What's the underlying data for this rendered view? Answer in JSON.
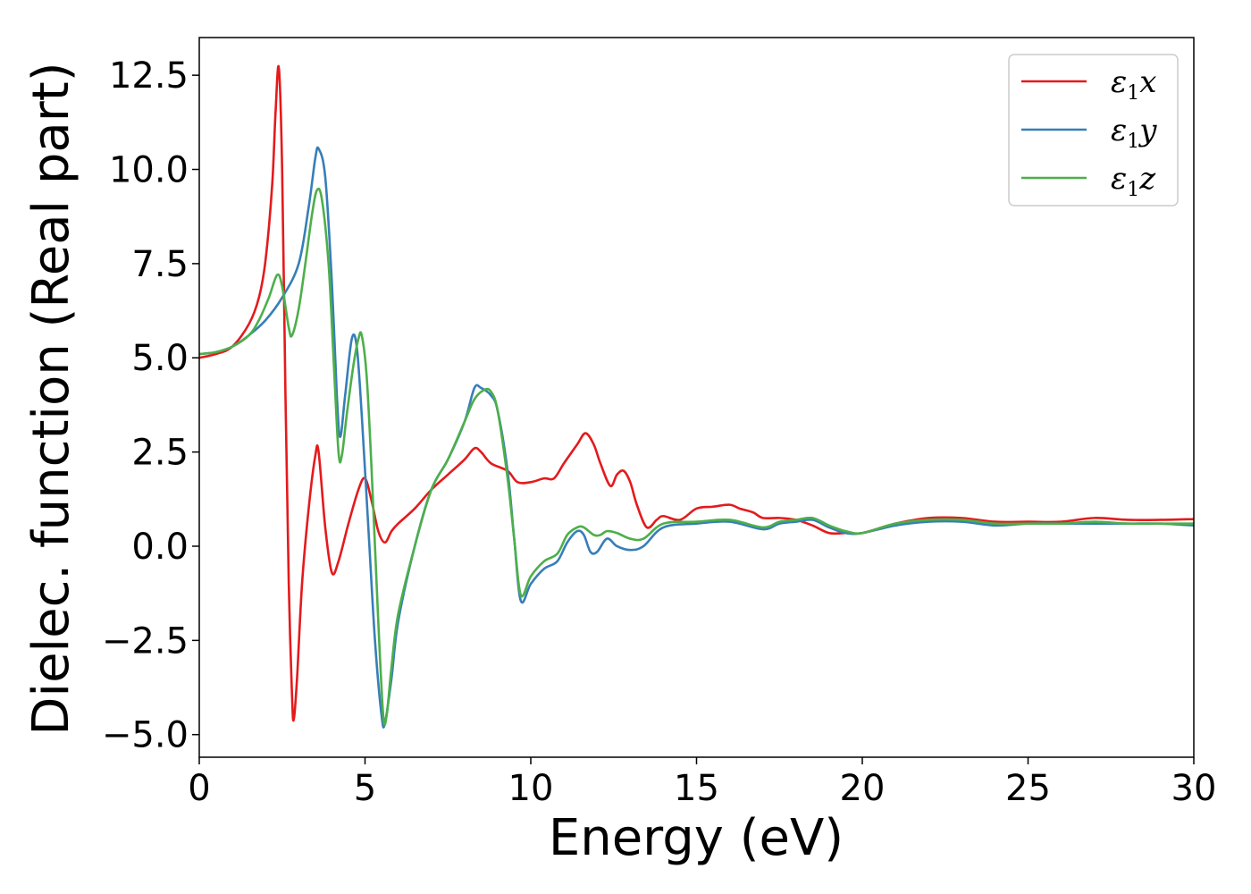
{
  "chart_data": {
    "type": "line",
    "title": "",
    "xlabel": "Energy (eV)",
    "ylabel": "Dielec. function (Real part)",
    "xlim": [
      0,
      30
    ],
    "ylim": [
      -5.6,
      13.5
    ],
    "xticks": [
      0,
      5,
      10,
      15,
      20,
      25,
      30
    ],
    "xtick_labels": [
      "0",
      "5",
      "10",
      "15",
      "20",
      "25",
      "30"
    ],
    "yticks": [
      -5.0,
      -2.5,
      0.0,
      2.5,
      5.0,
      7.5,
      10.0,
      12.5
    ],
    "ytick_labels": [
      "−5.0",
      "−2.5",
      "0.0",
      "2.5",
      "5.0",
      "7.5",
      "10.0",
      "12.5"
    ],
    "grid": false,
    "legend_position": "top-right",
    "series": [
      {
        "name": "ε1x",
        "legend": {
          "sym": "ε",
          "sub": "1",
          "suffix": "x"
        },
        "color": "#e41a1c",
        "points": [
          [
            0,
            5.0
          ],
          [
            0.5,
            5.1
          ],
          [
            1.0,
            5.3
          ],
          [
            1.5,
            5.9
          ],
          [
            1.8,
            6.6
          ],
          [
            2.0,
            7.6
          ],
          [
            2.2,
            9.6
          ],
          [
            2.3,
            11.5
          ],
          [
            2.4,
            12.7
          ],
          [
            2.5,
            10.0
          ],
          [
            2.6,
            4.0
          ],
          [
            2.7,
            -1.0
          ],
          [
            2.8,
            -4.0
          ],
          [
            2.85,
            -4.6
          ],
          [
            2.95,
            -3.5
          ],
          [
            3.1,
            -1.0
          ],
          [
            3.3,
            1.0
          ],
          [
            3.5,
            2.4
          ],
          [
            3.6,
            2.5
          ],
          [
            3.8,
            0.5
          ],
          [
            4.0,
            -0.7
          ],
          [
            4.2,
            -0.4
          ],
          [
            4.5,
            0.6
          ],
          [
            4.8,
            1.5
          ],
          [
            5.0,
            1.8
          ],
          [
            5.2,
            1.2
          ],
          [
            5.4,
            0.4
          ],
          [
            5.6,
            0.1
          ],
          [
            5.8,
            0.4
          ],
          [
            6.0,
            0.6
          ],
          [
            6.5,
            1.0
          ],
          [
            7.0,
            1.5
          ],
          [
            7.5,
            1.9
          ],
          [
            8.0,
            2.3
          ],
          [
            8.3,
            2.6
          ],
          [
            8.5,
            2.5
          ],
          [
            8.8,
            2.2
          ],
          [
            9.3,
            2.0
          ],
          [
            9.6,
            1.7
          ],
          [
            10.0,
            1.7
          ],
          [
            10.4,
            1.8
          ],
          [
            10.7,
            1.8
          ],
          [
            11.0,
            2.2
          ],
          [
            11.4,
            2.7
          ],
          [
            11.65,
            3.0
          ],
          [
            11.9,
            2.7
          ],
          [
            12.1,
            2.2
          ],
          [
            12.4,
            1.6
          ],
          [
            12.6,
            1.9
          ],
          [
            12.8,
            2.0
          ],
          [
            13.0,
            1.7
          ],
          [
            13.2,
            1.1
          ],
          [
            13.5,
            0.5
          ],
          [
            13.8,
            0.7
          ],
          [
            14.0,
            0.8
          ],
          [
            14.5,
            0.7
          ],
          [
            15.0,
            1.0
          ],
          [
            15.5,
            1.05
          ],
          [
            16.0,
            1.1
          ],
          [
            16.3,
            1.0
          ],
          [
            16.7,
            0.9
          ],
          [
            17.0,
            0.75
          ],
          [
            17.5,
            0.75
          ],
          [
            18.0,
            0.7
          ],
          [
            18.5,
            0.55
          ],
          [
            19.0,
            0.35
          ],
          [
            19.5,
            0.35
          ],
          [
            20.0,
            0.35
          ],
          [
            21.0,
            0.6
          ],
          [
            22.0,
            0.75
          ],
          [
            23.0,
            0.75
          ],
          [
            24.0,
            0.65
          ],
          [
            25.0,
            0.65
          ],
          [
            26.0,
            0.65
          ],
          [
            27.0,
            0.75
          ],
          [
            28.0,
            0.7
          ],
          [
            29.0,
            0.7
          ],
          [
            30.0,
            0.72
          ]
        ]
      },
      {
        "name": "ε1y",
        "legend": {
          "sym": "ε",
          "sub": "1",
          "suffix": "y"
        },
        "color": "#377eb8",
        "points": [
          [
            0,
            5.1
          ],
          [
            0.5,
            5.15
          ],
          [
            1.0,
            5.3
          ],
          [
            1.5,
            5.6
          ],
          [
            2.0,
            6.0
          ],
          [
            2.5,
            6.6
          ],
          [
            3.0,
            7.5
          ],
          [
            3.3,
            9.0
          ],
          [
            3.5,
            10.3
          ],
          [
            3.6,
            10.55
          ],
          [
            3.8,
            9.8
          ],
          [
            4.0,
            7.0
          ],
          [
            4.15,
            4.0
          ],
          [
            4.25,
            2.9
          ],
          [
            4.4,
            4.0
          ],
          [
            4.6,
            5.5
          ],
          [
            4.75,
            5.3
          ],
          [
            4.9,
            3.5
          ],
          [
            5.1,
            0.5
          ],
          [
            5.3,
            -2.5
          ],
          [
            5.5,
            -4.5
          ],
          [
            5.6,
            -4.7
          ],
          [
            5.8,
            -3.5
          ],
          [
            6.0,
            -2.0
          ],
          [
            6.5,
            0.0
          ],
          [
            7.0,
            1.5
          ],
          [
            7.5,
            2.3
          ],
          [
            8.0,
            3.3
          ],
          [
            8.3,
            4.2
          ],
          [
            8.5,
            4.2
          ],
          [
            8.8,
            4.0
          ],
          [
            9.0,
            3.6
          ],
          [
            9.3,
            2.0
          ],
          [
            9.5,
            0.2
          ],
          [
            9.7,
            -1.45
          ],
          [
            10.0,
            -1.0
          ],
          [
            10.4,
            -0.6
          ],
          [
            10.8,
            -0.4
          ],
          [
            11.1,
            0.1
          ],
          [
            11.4,
            0.4
          ],
          [
            11.6,
            0.3
          ],
          [
            11.8,
            -0.15
          ],
          [
            12.0,
            -0.15
          ],
          [
            12.3,
            0.2
          ],
          [
            12.6,
            0.0
          ],
          [
            13.0,
            -0.1
          ],
          [
            13.4,
            0.0
          ],
          [
            14.0,
            0.5
          ],
          [
            15.0,
            0.6
          ],
          [
            16.0,
            0.65
          ],
          [
            17.0,
            0.45
          ],
          [
            17.5,
            0.6
          ],
          [
            18.0,
            0.65
          ],
          [
            18.5,
            0.7
          ],
          [
            19.0,
            0.5
          ],
          [
            19.5,
            0.35
          ],
          [
            20.0,
            0.35
          ],
          [
            21.0,
            0.55
          ],
          [
            22.0,
            0.65
          ],
          [
            23.0,
            0.65
          ],
          [
            24.0,
            0.55
          ],
          [
            25.0,
            0.6
          ],
          [
            26.0,
            0.6
          ],
          [
            27.0,
            0.6
          ],
          [
            28.0,
            0.6
          ],
          [
            29.0,
            0.6
          ],
          [
            30.0,
            0.55
          ]
        ]
      },
      {
        "name": "ε1z",
        "legend": {
          "sym": "ε",
          "sub": "1",
          "suffix": "z"
        },
        "color": "#4daf4a",
        "points": [
          [
            0,
            5.1
          ],
          [
            0.5,
            5.15
          ],
          [
            1.0,
            5.3
          ],
          [
            1.5,
            5.6
          ],
          [
            1.8,
            6.0
          ],
          [
            2.1,
            6.6
          ],
          [
            2.35,
            7.2
          ],
          [
            2.5,
            6.9
          ],
          [
            2.7,
            5.8
          ],
          [
            2.8,
            5.6
          ],
          [
            3.0,
            6.3
          ],
          [
            3.2,
            7.5
          ],
          [
            3.4,
            8.8
          ],
          [
            3.55,
            9.45
          ],
          [
            3.7,
            9.2
          ],
          [
            3.9,
            7.5
          ],
          [
            4.05,
            5.0
          ],
          [
            4.2,
            2.5
          ],
          [
            4.3,
            2.4
          ],
          [
            4.45,
            3.5
          ],
          [
            4.65,
            4.8
          ],
          [
            4.8,
            5.5
          ],
          [
            4.9,
            5.6
          ],
          [
            5.05,
            4.5
          ],
          [
            5.2,
            2.0
          ],
          [
            5.4,
            -2.0
          ],
          [
            5.55,
            -4.5
          ],
          [
            5.65,
            -4.5
          ],
          [
            5.8,
            -3.2
          ],
          [
            6.0,
            -1.8
          ],
          [
            6.5,
            0.0
          ],
          [
            7.0,
            1.5
          ],
          [
            7.5,
            2.3
          ],
          [
            8.0,
            3.3
          ],
          [
            8.3,
            3.9
          ],
          [
            8.6,
            4.15
          ],
          [
            8.8,
            4.1
          ],
          [
            9.0,
            3.6
          ],
          [
            9.3,
            1.8
          ],
          [
            9.5,
            0.2
          ],
          [
            9.7,
            -1.3
          ],
          [
            10.0,
            -0.8
          ],
          [
            10.4,
            -0.4
          ],
          [
            10.8,
            -0.2
          ],
          [
            11.1,
            0.3
          ],
          [
            11.4,
            0.5
          ],
          [
            11.6,
            0.5
          ],
          [
            11.9,
            0.3
          ],
          [
            12.1,
            0.3
          ],
          [
            12.3,
            0.4
          ],
          [
            12.6,
            0.35
          ],
          [
            13.0,
            0.2
          ],
          [
            13.4,
            0.2
          ],
          [
            14.0,
            0.6
          ],
          [
            15.0,
            0.65
          ],
          [
            16.0,
            0.7
          ],
          [
            17.0,
            0.5
          ],
          [
            17.5,
            0.65
          ],
          [
            18.0,
            0.7
          ],
          [
            18.5,
            0.75
          ],
          [
            19.0,
            0.55
          ],
          [
            19.5,
            0.4
          ],
          [
            20.0,
            0.35
          ],
          [
            21.0,
            0.6
          ],
          [
            22.0,
            0.7
          ],
          [
            23.0,
            0.7
          ],
          [
            24.0,
            0.6
          ],
          [
            25.0,
            0.6
          ],
          [
            26.0,
            0.6
          ],
          [
            27.0,
            0.65
          ],
          [
            28.0,
            0.6
          ],
          [
            29.0,
            0.6
          ],
          [
            30.0,
            0.6
          ]
        ]
      }
    ]
  }
}
